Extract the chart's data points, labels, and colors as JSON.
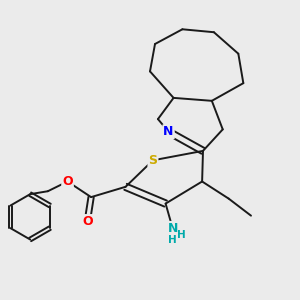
{
  "background_color": "#ebebeb",
  "bond_color": "#1a1a1a",
  "atom_colors": {
    "N": "#0000ff",
    "S": "#ccaa00",
    "O": "#ff0000",
    "NH2": "#00aaaa"
  },
  "figsize": [
    3.0,
    3.0
  ],
  "dpi": 100
}
